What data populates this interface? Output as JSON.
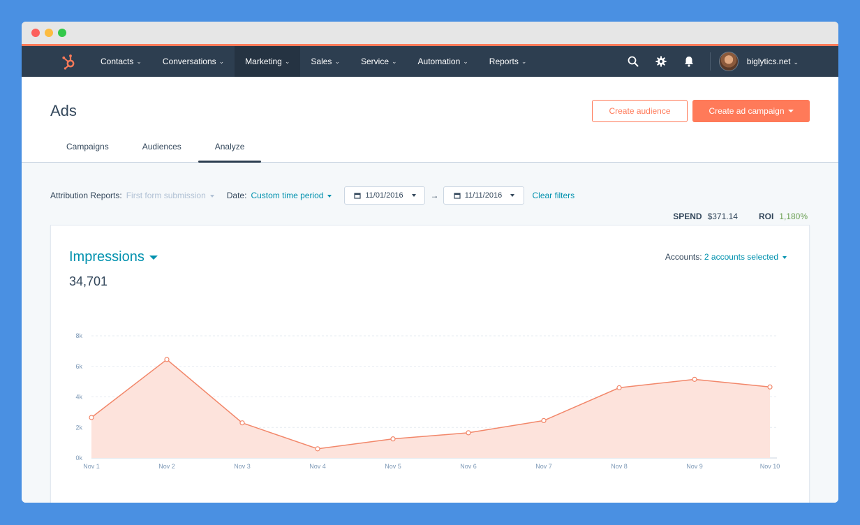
{
  "window": {
    "dots": [
      "#fc605c",
      "#fdbc40",
      "#34c84a"
    ]
  },
  "nav": {
    "items": [
      {
        "label": "Contacts",
        "active": false
      },
      {
        "label": "Conversations",
        "active": false
      },
      {
        "label": "Marketing",
        "active": true
      },
      {
        "label": "Sales",
        "active": false
      },
      {
        "label": "Service",
        "active": false
      },
      {
        "label": "Automation",
        "active": false
      },
      {
        "label": "Reports",
        "active": false
      }
    ],
    "account": "biglytics.net",
    "icons": [
      "search-icon",
      "gear-icon",
      "bell-icon"
    ]
  },
  "header": {
    "title": "Ads",
    "create_audience": "Create audience",
    "create_campaign": "Create ad campaign",
    "tabs": [
      "Campaigns",
      "Audiences",
      "Analyze"
    ],
    "active_tab": "Analyze"
  },
  "filters": {
    "attribution_label": "Attribution Reports:",
    "attribution_value": "First form submission",
    "date_label": "Date:",
    "date_value": "Custom time period",
    "start_date": "11/01/2016",
    "end_date": "11/11/2016",
    "clear": "Clear filters"
  },
  "stats": {
    "spend_label": "SPEND",
    "spend_value": "$371.14",
    "roi_label": "ROI",
    "roi_value": "1,180%"
  },
  "card": {
    "metric": "Impressions",
    "total": "34,701",
    "accounts_label": "Accounts:",
    "accounts_value": "2 accounts selected"
  },
  "colors": {
    "accent": "#ff7a59",
    "link": "#0091ae",
    "nav": "#2d3e50",
    "roi": "#6a9f52"
  },
  "chart_data": {
    "type": "area",
    "categories": [
      "Nov 1",
      "Nov 2",
      "Nov 3",
      "Nov 4",
      "Nov 5",
      "Nov 6",
      "Nov 7",
      "Nov 8",
      "Nov 9",
      "Nov 10"
    ],
    "values": [
      2650,
      6450,
      2300,
      600,
      1250,
      1650,
      2450,
      4600,
      5150,
      4650
    ],
    "ylim": [
      0,
      8000
    ],
    "yticks": [
      "0k",
      "2k",
      "4k",
      "6k",
      "8k"
    ],
    "grid": true
  }
}
